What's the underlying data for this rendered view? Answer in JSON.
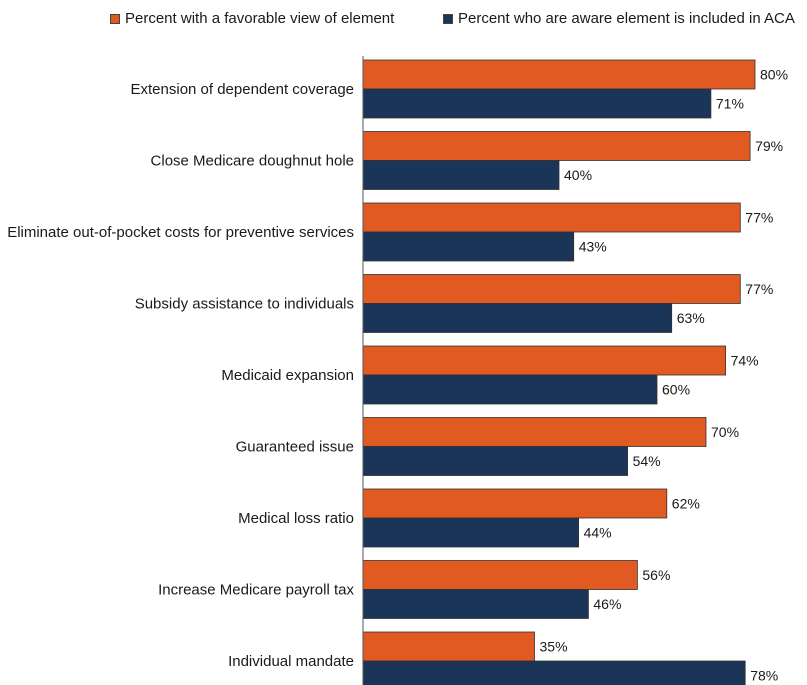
{
  "chart_data": {
    "type": "bar",
    "orientation": "horizontal",
    "title": "",
    "xlabel": "",
    "ylabel": "",
    "xlim": [
      0,
      100
    ],
    "grid": false,
    "legend_position": "top",
    "categories": [
      "Extension of dependent coverage",
      "Close Medicare doughnut hole",
      "Eliminate out-of-pocket costs for preventive services",
      "Subsidy assistance to individuals",
      "Medicaid expansion",
      "Guaranteed issue",
      "Medical loss ratio",
      "Increase Medicare payroll tax",
      "Individual mandate"
    ],
    "series": [
      {
        "name": "Percent with a favorable view of element",
        "color": "#e05a22",
        "values": [
          80,
          79,
          77,
          77,
          74,
          70,
          62,
          56,
          35
        ],
        "labels": [
          "80%",
          "79%",
          "77%",
          "77%",
          "74%",
          "70%",
          "62%",
          "56%",
          "35%"
        ]
      },
      {
        "name": "Percent who are aware element is included in ACA",
        "color": "#1b3558",
        "values": [
          71,
          40,
          43,
          63,
          60,
          54,
          44,
          46,
          78
        ],
        "labels": [
          "71%",
          "40%",
          "43%",
          "63%",
          "60%",
          "54%",
          "44%",
          "46%",
          "78%"
        ]
      }
    ]
  }
}
